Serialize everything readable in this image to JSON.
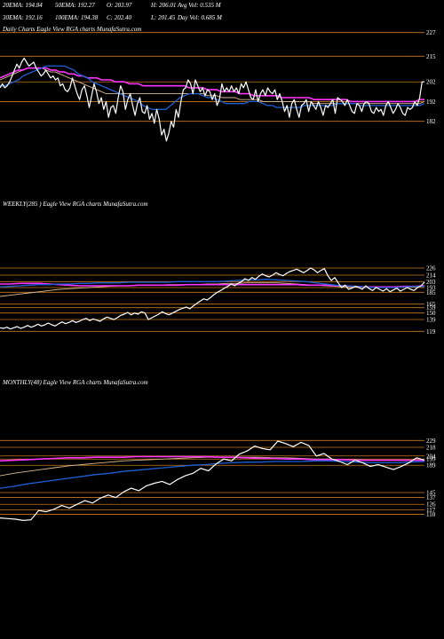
{
  "colors": {
    "background": "#000000",
    "price": "#ffffff",
    "ema_short": "#1f5fd6",
    "ema_long": "#ff33ff",
    "ema_mid": "#d9b98f",
    "level_line": "#c8781e"
  },
  "header": {
    "line1": [
      "20EMA: 194.84",
      "50EMA: 192.27",
      "O: 203.97",
      "H: 206.01",
      "Avg Vol: 0.535 M"
    ],
    "line2": [
      "30EMA: 192.16",
      "100EMA: 194.38",
      "C: 202.40",
      "L: 201.45",
      "Day Vol: 0.685 M"
    ]
  },
  "chart_data": [
    {
      "type": "line",
      "caption": "Daily Charts  Eagle  View  RGA charts MunafaSutra.com",
      "y_ticks": [
        "227",
        "215",
        "202",
        "192",
        "182"
      ],
      "ylim": [
        176,
        230
      ],
      "levels": [
        227,
        215,
        202,
        192,
        182
      ],
      "series": [
        {
          "key": "price",
          "values": [
            199,
            201,
            199,
            200,
            202,
            205,
            208,
            211,
            209,
            212,
            214,
            212,
            210,
            211,
            212,
            209,
            207,
            205,
            206,
            208,
            206,
            204,
            205,
            203,
            204,
            200,
            201,
            198,
            197,
            199,
            204,
            200,
            196,
            193,
            198,
            200,
            195,
            189,
            195,
            201,
            197,
            191,
            194,
            188,
            192,
            184,
            189,
            190,
            186,
            194,
            200,
            197,
            188,
            193,
            196,
            190,
            185,
            191,
            194,
            187,
            186,
            190,
            183,
            186,
            181,
            188,
            183,
            175,
            178,
            172,
            176,
            182,
            179,
            188,
            184,
            192,
            198,
            199,
            203,
            201,
            196,
            203,
            200,
            197,
            199,
            195,
            198,
            197,
            193,
            196,
            190,
            193,
            201,
            197,
            199,
            197,
            200,
            197,
            199,
            196,
            201,
            199,
            202,
            198,
            194,
            193,
            198,
            192,
            196,
            198,
            195,
            199,
            197,
            196,
            198,
            193,
            196,
            192,
            187,
            190,
            184,
            191,
            193,
            188,
            184,
            190,
            191,
            193,
            187,
            192,
            190,
            188,
            192,
            189,
            185,
            190,
            189,
            191,
            193,
            186,
            194,
            193,
            192,
            190,
            193,
            190,
            187,
            186,
            191,
            190,
            187,
            191,
            192,
            191,
            187,
            186,
            189,
            187,
            188,
            185,
            190,
            192,
            189,
            186,
            188,
            191,
            189,
            186,
            185,
            189,
            188,
            189,
            192,
            190,
            194,
            202,
            202
          ]
        },
        {
          "key": "ema_short",
          "values": [
            200,
            200,
            201,
            202,
            203,
            205,
            206,
            207,
            208,
            209,
            210,
            210,
            210,
            210,
            210,
            209,
            208,
            206,
            205,
            204,
            202,
            201,
            200,
            199,
            198,
            197,
            196,
            195,
            194,
            193,
            192,
            190,
            189,
            188,
            188,
            188,
            188,
            190,
            192,
            194,
            195,
            196,
            196,
            196,
            195,
            194,
            194,
            193,
            192,
            191,
            191,
            191,
            191,
            191,
            192,
            192,
            192,
            191,
            190,
            190,
            189,
            189,
            189,
            189,
            189,
            189,
            190,
            190,
            190,
            190,
            190,
            190,
            190,
            191,
            191,
            191,
            191,
            191,
            190,
            190,
            190,
            190,
            190,
            190,
            190,
            190,
            190,
            190,
            190,
            190,
            190,
            190,
            191
          ]
        },
        {
          "key": "ema_long",
          "values": [
            204,
            205,
            206,
            207,
            208,
            208,
            209,
            209,
            209,
            209,
            209,
            208,
            208,
            207,
            207,
            206,
            206,
            205,
            205,
            204,
            204,
            204,
            203,
            203,
            203,
            202,
            202,
            202,
            201,
            201,
            201,
            200,
            200,
            200,
            200,
            200,
            200,
            200,
            200,
            200,
            200,
            199,
            199,
            199,
            199,
            198,
            198,
            198,
            197,
            197,
            197,
            197,
            196,
            196,
            196,
            195,
            195,
            195,
            195,
            195,
            195,
            194,
            194,
            194,
            194,
            194,
            194,
            194,
            193,
            193,
            193,
            193,
            193,
            193,
            193,
            193,
            192,
            192,
            192,
            192,
            192,
            192,
            192,
            192,
            192,
            192,
            192,
            192,
            192,
            192,
            192,
            193,
            193
          ]
        },
        {
          "key": "ema_mid",
          "values": [
            203,
            204,
            205,
            206,
            207,
            208,
            209,
            209,
            209,
            209,
            208,
            207,
            207,
            206,
            205,
            204,
            203,
            202,
            201,
            200,
            199,
            198,
            197,
            196,
            196,
            196,
            196,
            196,
            196,
            196,
            196,
            196,
            196,
            196,
            196,
            196,
            196,
            196,
            196,
            196,
            196,
            196,
            196,
            196,
            196,
            195,
            195,
            195,
            194,
            194,
            194,
            194,
            193,
            193,
            193,
            193,
            193,
            192,
            192,
            192,
            192,
            192,
            192,
            192,
            192,
            192,
            192,
            192,
            191,
            191,
            191,
            191,
            191,
            191,
            191,
            191,
            191,
            191,
            191,
            191,
            191,
            191,
            191,
            191,
            191,
            191,
            191,
            191,
            191,
            191,
            191,
            191,
            192
          ]
        }
      ]
    },
    {
      "type": "line",
      "caption": "WEEKLY(285        ) Eagle  View  RGA charts MunafaSutra.com",
      "y_ticks": [
        "226",
        "214",
        "203",
        "193",
        "185",
        "165",
        "159",
        "150",
        "139",
        "119"
      ],
      "ylim": [
        100,
        235
      ],
      "levels": [
        226,
        214,
        203,
        193,
        185,
        165,
        159,
        150,
        139,
        119
      ],
      "series": [
        {
          "key": "price",
          "values": [
            125,
            124,
            126,
            123,
            125,
            127,
            124,
            126,
            129,
            126,
            128,
            131,
            128,
            130,
            133,
            130,
            128,
            132,
            135,
            132,
            134,
            137,
            134,
            136,
            139,
            141,
            137,
            140,
            138,
            136,
            140,
            143,
            141,
            139,
            142,
            146,
            148,
            151,
            147,
            150,
            148,
            152,
            150,
            139,
            142,
            145,
            148,
            152,
            149,
            147,
            150,
            153,
            156,
            158,
            160,
            157,
            162,
            166,
            170,
            174,
            172,
            176,
            181,
            185,
            188,
            192,
            195,
            199,
            196,
            200,
            203,
            208,
            205,
            210,
            207,
            212,
            216,
            213,
            211,
            214,
            218,
            215,
            213,
            217,
            220,
            222,
            224,
            221,
            218,
            222,
            226,
            223,
            218,
            222,
            225,
            213,
            205,
            210,
            201,
            193,
            197,
            190,
            192,
            195,
            193,
            190,
            196,
            191,
            188,
            193,
            190,
            187,
            191,
            186,
            189,
            192,
            187,
            190,
            193,
            190,
            188,
            193,
            196,
            202
          ]
        },
        {
          "key": "ema_short",
          "values": [
            194,
            195,
            196,
            197,
            198,
            198,
            199,
            199,
            200,
            200,
            201,
            201,
            201,
            202,
            202,
            202,
            202,
            202,
            203,
            203,
            203,
            203,
            203,
            204,
            205,
            206,
            206,
            207,
            206,
            205,
            204,
            203,
            201,
            199,
            197,
            196,
            195,
            194,
            193,
            193,
            193,
            194,
            195,
            195
          ]
        },
        {
          "key": "ema_long",
          "values": [
            199,
            199,
            200,
            200,
            200,
            199,
            198,
            197,
            196,
            196,
            196,
            196,
            196,
            196,
            197,
            197,
            197,
            197,
            197,
            198,
            198,
            198,
            198,
            198,
            198,
            198,
            198,
            198,
            198,
            198,
            198,
            197,
            197,
            197,
            196,
            196,
            195,
            194,
            194,
            194,
            194,
            195,
            195,
            196
          ]
        },
        {
          "key": "ema_mid",
          "values": [
            178,
            180,
            182,
            184,
            186,
            188,
            190,
            191,
            192,
            193,
            194,
            195,
            196,
            196,
            197,
            197,
            197,
            198,
            198,
            198,
            198,
            199,
            199,
            200,
            200,
            201,
            201,
            201,
            201,
            200,
            199,
            198,
            197,
            196,
            195,
            194,
            194,
            193,
            193,
            193,
            193,
            194,
            194,
            195
          ]
        }
      ]
    },
    {
      "type": "line",
      "caption": "MONTHLY(48) Eagle  View  RGA charts MunafaSutra.com",
      "y_ticks": [
        "229",
        "218",
        "204",
        "199",
        "189",
        "145",
        "137",
        "126",
        "117",
        "110"
      ],
      "ylim": [
        92,
        238
      ],
      "levels": [
        229,
        218,
        204,
        199,
        189,
        145,
        137,
        126,
        117,
        110
      ],
      "series": [
        {
          "key": "price",
          "values": [
            104,
            103,
            102,
            100,
            101,
            116,
            114,
            118,
            124,
            120,
            126,
            132,
            128,
            136,
            141,
            137,
            146,
            152,
            148,
            156,
            160,
            163,
            158,
            166,
            172,
            176,
            184,
            180,
            191,
            199,
            196,
            207,
            212,
            220,
            216,
            214,
            228,
            224,
            219,
            226,
            221,
            204,
            208,
            199,
            195,
            190,
            197,
            193,
            187,
            190,
            186,
            182,
            187,
            193,
            201,
            197
          ]
        },
        {
          "key": "ema_short",
          "values": [
            152,
            155,
            159,
            162,
            165,
            168,
            171,
            174,
            176,
            179,
            181,
            183,
            185,
            187,
            189,
            190,
            192,
            193,
            194,
            194,
            195,
            195,
            195,
            196,
            196,
            195,
            194,
            193,
            193,
            193,
            194,
            195
          ]
        },
        {
          "key": "ema_long",
          "values": [
            196,
            197,
            198,
            199,
            200,
            201,
            201,
            202,
            202,
            202,
            203,
            203,
            203,
            203,
            203,
            203,
            202,
            202,
            201,
            200,
            200,
            199,
            199,
            198,
            198,
            198,
            197,
            197,
            197,
            197,
            197,
            197
          ]
        },
        {
          "key": "ema_mid",
          "values": [
            172,
            176,
            179,
            182,
            185,
            188,
            190,
            192,
            194,
            196,
            197,
            198,
            199,
            200,
            201,
            202,
            202,
            202,
            202,
            202,
            201,
            201,
            200,
            199,
            199,
            198,
            198,
            197,
            197,
            197,
            197,
            198
          ]
        }
      ]
    }
  ]
}
